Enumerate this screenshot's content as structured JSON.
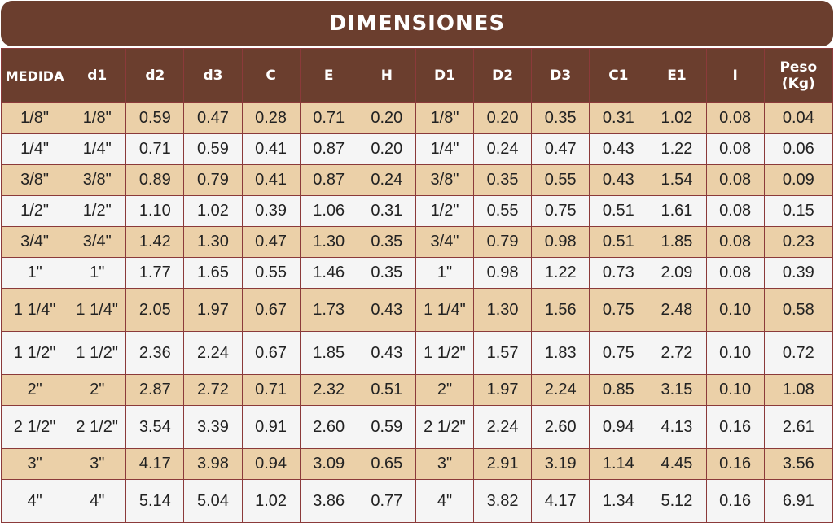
{
  "title": "DIMENSIONES",
  "headers": [
    "MEDIDA",
    "d1",
    "d2",
    "d3",
    "C",
    "E",
    "H",
    "D1",
    "D2",
    "D3",
    "C1",
    "E1",
    "I",
    "Peso\n(Kg)"
  ],
  "rows": [
    [
      "1/8\"",
      "1/8\"",
      "0.59",
      "0.47",
      "0.28",
      "0.71",
      "0.20",
      "1/8\"",
      "0.20",
      "0.35",
      "0.31",
      "1.02",
      "0.08",
      "0.04"
    ],
    [
      "1/4\"",
      "1/4\"",
      "0.71",
      "0.59",
      "0.41",
      "0.87",
      "0.20",
      "1/4\"",
      "0.24",
      "0.47",
      "0.43",
      "1.22",
      "0.08",
      "0.06"
    ],
    [
      "3/8\"",
      "3/8\"",
      "0.89",
      "0.79",
      "0.41",
      "0.87",
      "0.24",
      "3/8\"",
      "0.35",
      "0.55",
      "0.43",
      "1.54",
      "0.08",
      "0.09"
    ],
    [
      "1/2\"",
      "1/2\"",
      "1.10",
      "1.02",
      "0.39",
      "1.06",
      "0.31",
      "1/2\"",
      "0.55",
      "0.75",
      "0.51",
      "1.61",
      "0.08",
      "0.15"
    ],
    [
      "3/4\"",
      "3/4\"",
      "1.42",
      "1.30",
      "0.47",
      "1.30",
      "0.35",
      "3/4\"",
      "0.79",
      "0.98",
      "0.51",
      "1.85",
      "0.08",
      "0.23"
    ],
    [
      "1\"",
      "1\"",
      "1.77",
      "1.65",
      "0.55",
      "1.46",
      "0.35",
      "1\"",
      "0.98",
      "1.22",
      "0.73",
      "2.09",
      "0.08",
      "0.39"
    ],
    [
      "1 1/4\"",
      "1 1/4\"",
      "2.05",
      "1.97",
      "0.67",
      "1.73",
      "0.43",
      "1 1/4\"",
      "1.30",
      "1.56",
      "0.75",
      "2.48",
      "0.10",
      "0.58"
    ],
    [
      "1 1/2\"",
      "1 1/2\"",
      "2.36",
      "2.24",
      "0.67",
      "1.85",
      "0.43",
      "1 1/2\"",
      "1.57",
      "1.83",
      "0.75",
      "2.72",
      "0.10",
      "0.72"
    ],
    [
      "2\"",
      "2\"",
      "2.87",
      "2.72",
      "0.71",
      "2.32",
      "0.51",
      "2\"",
      "1.97",
      "2.24",
      "0.85",
      "3.15",
      "0.10",
      "1.08"
    ],
    [
      "2 1/2\"",
      "2 1/2\"",
      "3.54",
      "3.39",
      "0.91",
      "2.60",
      "0.59",
      "2 1/2\"",
      "2.24",
      "2.60",
      "0.94",
      "4.13",
      "0.16",
      "2.61"
    ],
    [
      "3\"",
      "3\"",
      "4.17",
      "3.98",
      "0.94",
      "3.09",
      "0.65",
      "3\"",
      "2.91",
      "3.19",
      "1.14",
      "4.45",
      "0.16",
      "3.56"
    ],
    [
      "4\"",
      "4\"",
      "5.14",
      "5.04",
      "1.02",
      "3.86",
      "0.77",
      "4\"",
      "3.82",
      "4.17",
      "1.34",
      "5.12",
      "0.16",
      "6.91"
    ]
  ],
  "colors": {
    "header_bg": "#6b3e2e",
    "row_odd": "#ebd0a8",
    "row_even": "#f5f5f5",
    "border": "#8b3a3a"
  }
}
